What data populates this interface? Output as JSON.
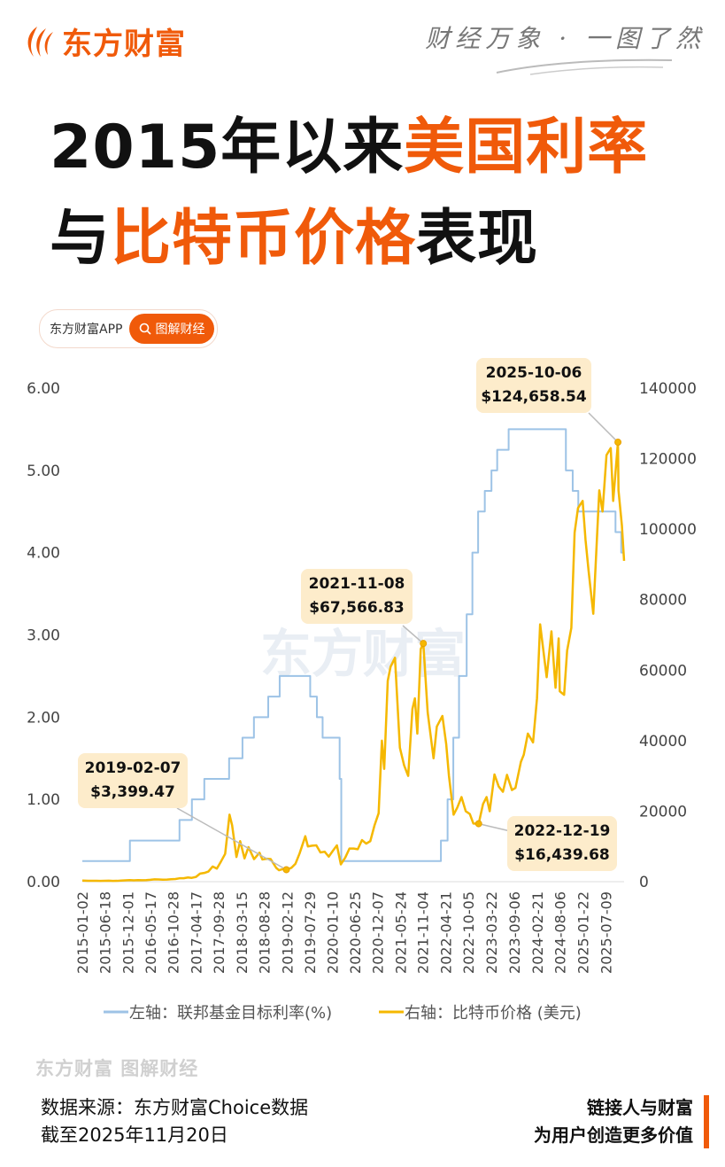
{
  "header": {
    "brand": "东方财富",
    "slogan": "财经万象 · 一图了然",
    "brand_color": "#f05a0a"
  },
  "title": {
    "line1_a": "2015年以来",
    "line1_b": "美国利率",
    "line2_a": "与",
    "line2_b": "比特币价格",
    "line2_c": "表现"
  },
  "pill": {
    "app": "东方财富APP",
    "button": "图解财经",
    "icon": "search-icon"
  },
  "watermark": "东方财富",
  "chart_data": {
    "type": "line",
    "x_type": "date",
    "xlim": [
      "2015-01-02",
      "2025-11-20"
    ],
    "x_tick_labels": [
      "2015-01-02",
      "2015-06-18",
      "2015-12-01",
      "2016-05-17",
      "2016-10-28",
      "2017-04-17",
      "2017-09-28",
      "2018-03-15",
      "2018-08-28",
      "2019-02-12",
      "2019-07-29",
      "2020-01-10",
      "2020-06-25",
      "2020-12-07",
      "2021-05-24",
      "2021-11-04",
      "2022-04-21",
      "2022-10-05",
      "2023-03-22",
      "2023-09-06",
      "2024-02-21",
      "2024-08-06",
      "2025-01-22",
      "2025-07-09"
    ],
    "y_left": {
      "ylim": [
        0,
        6
      ],
      "ticks": [
        "0.00",
        "1.00",
        "2.00",
        "3.00",
        "4.00",
        "5.00",
        "6.00"
      ]
    },
    "y_right": {
      "ylim": [
        0,
        140000
      ],
      "ticks": [
        "0",
        "20000",
        "40000",
        "60000",
        "80000",
        "100000",
        "120000",
        "140000"
      ]
    },
    "grid": false,
    "legend_position": "bottom",
    "series": [
      {
        "name": "左轴：联邦基金目标利率(%)",
        "axis": "left",
        "color": "#9dc3e6",
        "step": true,
        "points": [
          [
            "2015-01-02",
            0.25
          ],
          [
            "2015-12-17",
            0.5
          ],
          [
            "2016-12-15",
            0.75
          ],
          [
            "2017-03-16",
            1.0
          ],
          [
            "2017-06-15",
            1.25
          ],
          [
            "2017-12-14",
            1.5
          ],
          [
            "2018-03-22",
            1.75
          ],
          [
            "2018-06-14",
            2.0
          ],
          [
            "2018-09-27",
            2.25
          ],
          [
            "2018-12-20",
            2.5
          ],
          [
            "2019-08-01",
            2.25
          ],
          [
            "2019-09-19",
            2.0
          ],
          [
            "2019-10-31",
            1.75
          ],
          [
            "2020-03-04",
            1.25
          ],
          [
            "2020-03-16",
            0.25
          ],
          [
            "2022-03-17",
            0.5
          ],
          [
            "2022-05-05",
            1.0
          ],
          [
            "2022-06-16",
            1.75
          ],
          [
            "2022-07-28",
            2.5
          ],
          [
            "2022-09-22",
            3.25
          ],
          [
            "2022-11-03",
            4.0
          ],
          [
            "2022-12-15",
            4.5
          ],
          [
            "2023-02-02",
            4.75
          ],
          [
            "2023-03-23",
            5.0
          ],
          [
            "2023-05-04",
            5.25
          ],
          [
            "2023-07-27",
            5.5
          ],
          [
            "2024-09-19",
            5.0
          ],
          [
            "2024-11-08",
            4.75
          ],
          [
            "2024-12-19",
            4.5
          ],
          [
            "2025-09-18",
            4.25
          ],
          [
            "2025-10-30",
            4.0
          ],
          [
            "2025-11-20",
            4.0
          ]
        ]
      },
      {
        "name": "右轴：比特币价格 (美元)",
        "axis": "right",
        "color": "#f5b800",
        "points": [
          [
            "2015-01-02",
            315
          ],
          [
            "2015-02-15",
            250
          ],
          [
            "2015-03-15",
            245
          ],
          [
            "2015-04-15",
            240
          ],
          [
            "2015-05-15",
            230
          ],
          [
            "2015-06-15",
            265
          ],
          [
            "2015-07-15",
            285
          ],
          [
            "2015-08-15",
            230
          ],
          [
            "2015-09-15",
            236
          ],
          [
            "2015-10-15",
            310
          ],
          [
            "2015-11-15",
            380
          ],
          [
            "2015-12-15",
            430
          ],
          [
            "2016-01-15",
            370
          ],
          [
            "2016-02-15",
            430
          ],
          [
            "2016-03-15",
            415
          ],
          [
            "2016-04-15",
            450
          ],
          [
            "2016-05-15",
            530
          ],
          [
            "2016-06-15",
            670
          ],
          [
            "2016-07-15",
            620
          ],
          [
            "2016-08-15",
            575
          ],
          [
            "2016-09-15",
            610
          ],
          [
            "2016-10-15",
            700
          ],
          [
            "2016-11-15",
            745
          ],
          [
            "2016-12-15",
            960
          ],
          [
            "2017-01-15",
            970
          ],
          [
            "2017-02-15",
            1190
          ],
          [
            "2017-03-15",
            1080
          ],
          [
            "2017-04-15",
            1350
          ],
          [
            "2017-05-15",
            2300
          ],
          [
            "2017-06-15",
            2480
          ],
          [
            "2017-07-15",
            2870
          ],
          [
            "2017-08-15",
            4300
          ],
          [
            "2017-09-15",
            3700
          ],
          [
            "2017-10-15",
            5700
          ],
          [
            "2017-11-15",
            7900
          ],
          [
            "2017-12-17",
            19000
          ],
          [
            "2018-01-05",
            16000
          ],
          [
            "2018-02-06",
            7000
          ],
          [
            "2018-03-05",
            11500
          ],
          [
            "2018-04-06",
            6600
          ],
          [
            "2018-05-05",
            9800
          ],
          [
            "2018-06-15",
            6400
          ],
          [
            "2018-07-25",
            8200
          ],
          [
            "2018-08-15",
            6300
          ],
          [
            "2018-09-15",
            6500
          ],
          [
            "2018-10-15",
            6400
          ],
          [
            "2018-11-25",
            3900
          ],
          [
            "2018-12-15",
            3250
          ],
          [
            "2019-01-15",
            3600
          ],
          [
            "2019-02-07",
            3399.47
          ],
          [
            "2019-03-15",
            3900
          ],
          [
            "2019-04-15",
            5100
          ],
          [
            "2019-05-15",
            8000
          ],
          [
            "2019-06-26",
            12900
          ],
          [
            "2019-07-15",
            10000
          ],
          [
            "2019-08-15",
            10200
          ],
          [
            "2019-09-15",
            10300
          ],
          [
            "2019-10-15",
            8300
          ],
          [
            "2019-11-15",
            8500
          ],
          [
            "2019-12-15",
            7100
          ],
          [
            "2020-01-15",
            8800
          ],
          [
            "2020-02-13",
            10300
          ],
          [
            "2020-03-13",
            4900
          ],
          [
            "2020-04-15",
            6900
          ],
          [
            "2020-05-15",
            9400
          ],
          [
            "2020-06-15",
            9400
          ],
          [
            "2020-07-15",
            9200
          ],
          [
            "2020-08-15",
            11800
          ],
          [
            "2020-09-15",
            10800
          ],
          [
            "2020-10-15",
            11500
          ],
          [
            "2020-11-15",
            16000
          ],
          [
            "2020-12-15",
            19400
          ],
          [
            "2021-01-08",
            40000
          ],
          [
            "2021-01-25",
            32000
          ],
          [
            "2021-02-20",
            57000
          ],
          [
            "2021-03-13",
            61000
          ],
          [
            "2021-04-14",
            63500
          ],
          [
            "2021-05-20",
            38000
          ],
          [
            "2021-06-20",
            33000
          ],
          [
            "2021-07-20",
            30000
          ],
          [
            "2021-08-20",
            49000
          ],
          [
            "2021-09-07",
            52000
          ],
          [
            "2021-09-25",
            42000
          ],
          [
            "2021-10-20",
            66000
          ],
          [
            "2021-11-08",
            67566.83
          ],
          [
            "2021-12-10",
            48000
          ],
          [
            "2022-01-22",
            35000
          ],
          [
            "2022-02-15",
            44000
          ],
          [
            "2022-03-28",
            47000
          ],
          [
            "2022-04-25",
            39000
          ],
          [
            "2022-05-15",
            30000
          ],
          [
            "2022-06-18",
            19000
          ],
          [
            "2022-07-15",
            21000
          ],
          [
            "2022-08-15",
            24000
          ],
          [
            "2022-09-15",
            20000
          ],
          [
            "2022-10-15",
            19200
          ],
          [
            "2022-11-10",
            16500
          ],
          [
            "2022-12-19",
            16439.68
          ],
          [
            "2023-01-20",
            22000
          ],
          [
            "2023-02-15",
            24000
          ],
          [
            "2023-03-10",
            20000
          ],
          [
            "2023-04-14",
            30400
          ],
          [
            "2023-05-15",
            27000
          ],
          [
            "2023-06-15",
            25500
          ],
          [
            "2023-07-15",
            30300
          ],
          [
            "2023-08-20",
            26000
          ],
          [
            "2023-09-15",
            26600
          ],
          [
            "2023-10-25",
            34000
          ],
          [
            "2023-11-15",
            36000
          ],
          [
            "2023-12-15",
            42000
          ],
          [
            "2024-01-22",
            39500
          ],
          [
            "2024-02-20",
            52000
          ],
          [
            "2024-03-14",
            73000
          ],
          [
            "2024-04-15",
            63000
          ],
          [
            "2024-05-01",
            58000
          ],
          [
            "2024-06-05",
            71000
          ],
          [
            "2024-07-05",
            55000
          ],
          [
            "2024-07-28",
            69000
          ],
          [
            "2024-08-05",
            54000
          ],
          [
            "2024-09-06",
            53000
          ],
          [
            "2024-09-28",
            65500
          ],
          [
            "2024-10-29",
            72000
          ],
          [
            "2024-11-22",
            99000
          ],
          [
            "2024-12-17",
            106000
          ],
          [
            "2025-01-20",
            108000
          ],
          [
            "2025-02-10",
            97000
          ],
          [
            "2025-03-05",
            88000
          ],
          [
            "2025-04-08",
            76000
          ],
          [
            "2025-05-22",
            111000
          ],
          [
            "2025-06-15",
            105000
          ],
          [
            "2025-07-14",
            121000
          ],
          [
            "2025-08-14",
            123000
          ],
          [
            "2025-09-01",
            108000
          ],
          [
            "2025-10-06",
            124658.54
          ],
          [
            "2025-10-10",
            111000
          ],
          [
            "2025-11-04",
            101000
          ],
          [
            "2025-11-20",
            91000
          ]
        ]
      }
    ],
    "annotations": [
      {
        "date": "2019-02-07",
        "value": 3399.47,
        "label_date": "2019-02-07",
        "label_price": "$3,399.47"
      },
      {
        "date": "2021-11-08",
        "value": 67566.83,
        "label_date": "2021-11-08",
        "label_price": "$67,566.83"
      },
      {
        "date": "2022-12-19",
        "value": 16439.68,
        "label_date": "2022-12-19",
        "label_price": "$16,439.68"
      },
      {
        "date": "2025-10-06",
        "value": 124658.54,
        "label_date": "2025-10-06",
        "label_price": "$124,658.54"
      }
    ]
  },
  "footer": {
    "logo_text": "东方财富 图解财经",
    "source": "数据来源：东方财富Choice数据",
    "as_of": "截至2025年11月20日",
    "tagline1": "链接人与财富",
    "tagline2": "为用户创造更多价值"
  }
}
